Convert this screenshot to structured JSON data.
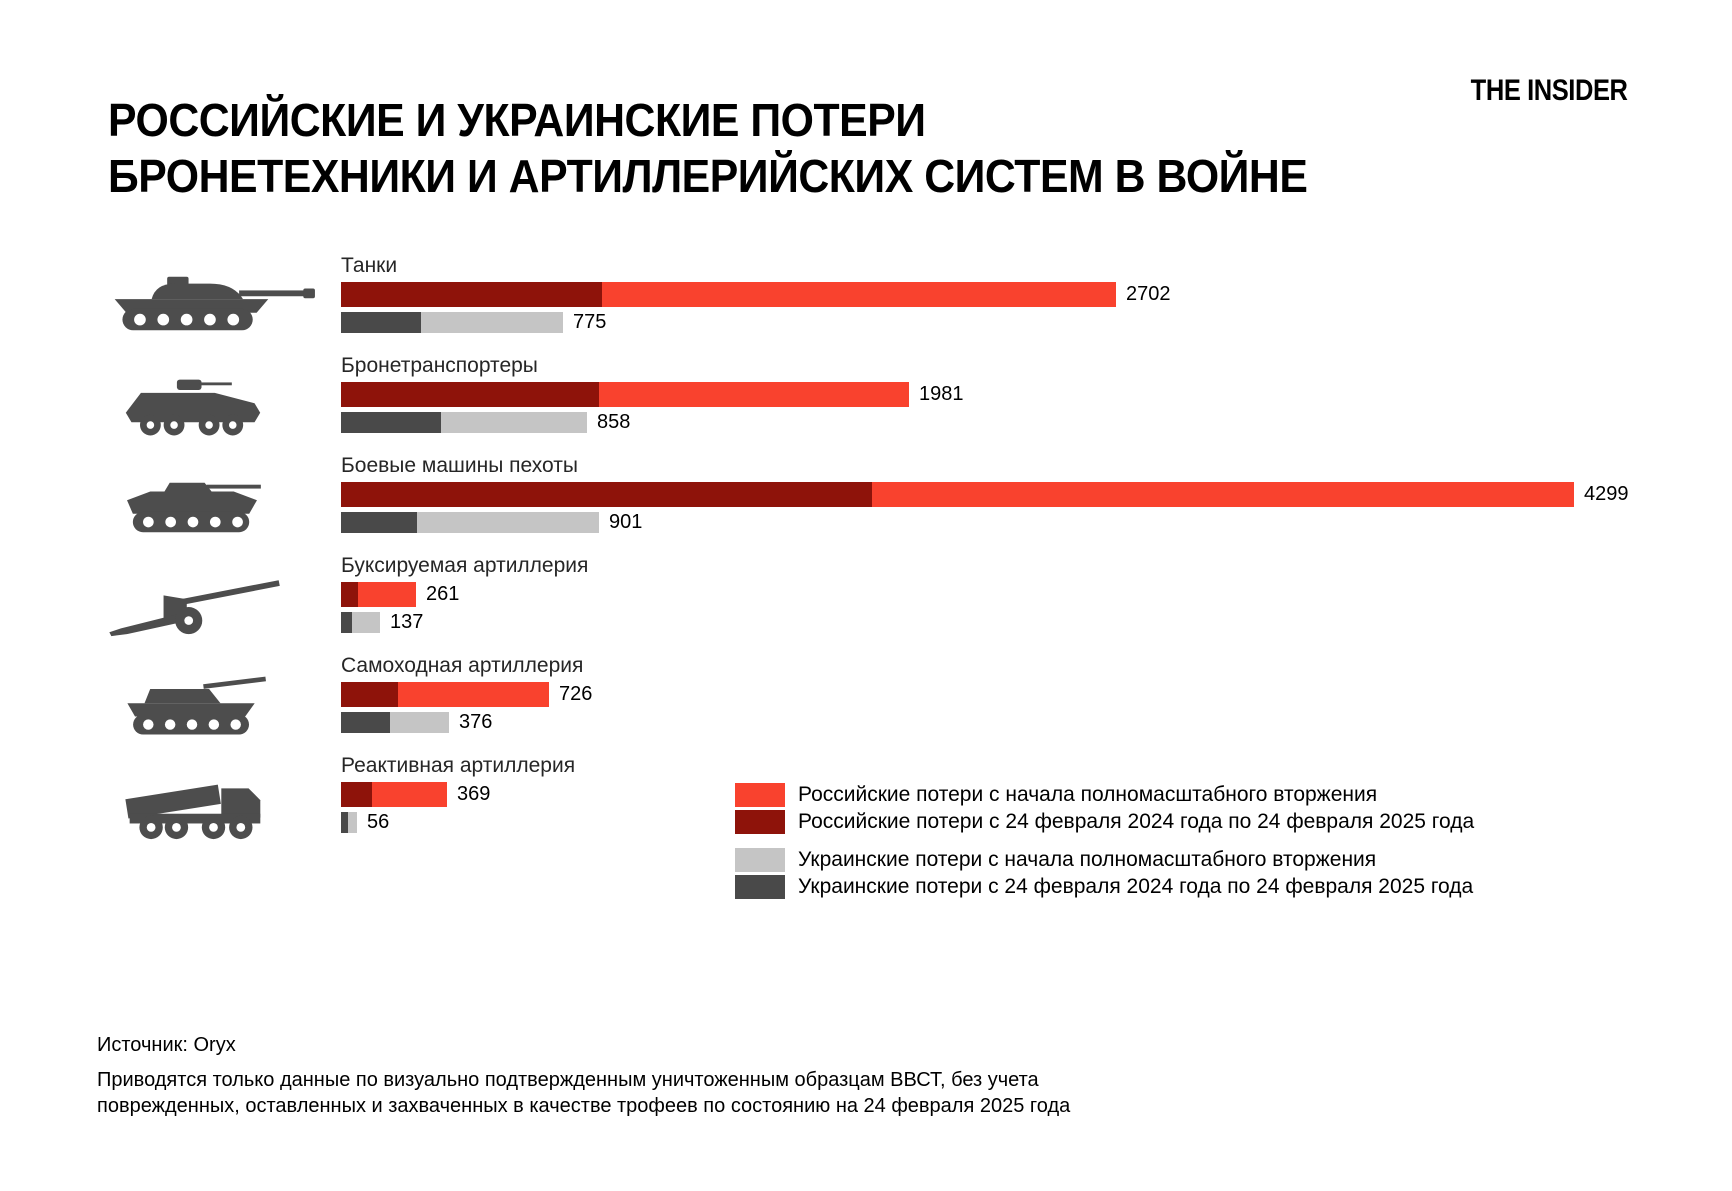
{
  "logo": {
    "text": "THE INSIDER"
  },
  "title": {
    "line1": "РОССИЙСКИЕ И УКРАИНСКИЕ ПОТЕРИ",
    "line2": "БРОНЕТЕХНИКИ И АРТИЛЛЕРИЙСКИХ СИСТЕМ В ВОЙНЕ"
  },
  "colors": {
    "russian_total": "#f9422e",
    "russian_last_year": "#8e130a",
    "ukrainian_total": "#c5c5c5",
    "ukrainian_last_year": "#494949",
    "silhouette": "#4d4d4d",
    "background": "#ffffff",
    "text": "#000000"
  },
  "chart_data": {
    "type": "bar",
    "orientation": "horizontal",
    "title": "РОССИЙСКИЕ И УКРАИНСКИЕ ПОТЕРИ БРОНЕТЕХНИКИ И АРТИЛЛЕРИЙСКИХ СИСТЕМ В ВОЙНЕ",
    "categories": [
      "Танки",
      "Бронетранспортеры",
      "Боевые машины пехоты",
      "Буксируемая артиллерия",
      "Самоходная артиллерия",
      "Реактивная артиллерия"
    ],
    "icons": [
      "tank-icon",
      "apc-icon",
      "ifv-icon",
      "towed-artillery-icon",
      "self-propelled-artillery-icon",
      "mlrs-icon"
    ],
    "xlim": [
      0,
      4299
    ],
    "grid": false,
    "legend_position": "bottom-right",
    "series": [
      {
        "id": "ru_total",
        "name": "Российские потери с начала полномасштабного вторжения",
        "color": "#f9422e",
        "values": [
          2702,
          1981,
          4299,
          261,
          726,
          369
        ],
        "value_labels_shown": true,
        "estimated": false
      },
      {
        "id": "ru_last_year",
        "name": "Российские потери с 24 февраля 2024 года по 24 февраля 2025 года",
        "color": "#8e130a",
        "values": [
          910,
          900,
          1850,
          60,
          200,
          108
        ],
        "value_labels_shown": false,
        "estimated": true
      },
      {
        "id": "ua_total",
        "name": "Украинские потери с начала полномасштабного вторжения",
        "color": "#c5c5c5",
        "values": [
          775,
          858,
          901,
          137,
          376,
          56
        ],
        "value_labels_shown": true,
        "estimated": false
      },
      {
        "id": "ua_last_year",
        "name": "Украинские потери с 24 февраля 2024 года по 24 февраля 2025 года",
        "color": "#494949",
        "values": [
          280,
          350,
          265,
          38,
          170,
          24
        ],
        "value_labels_shown": false,
        "estimated": true
      }
    ]
  },
  "footer": {
    "source": "Источник: Oryx",
    "note_line1": "Приводятся только данные по визуально подтвержденным уничтоженным образцам ВВСТ, без учета",
    "note_line2": "поврежденных, оставленных и захваченных в качестве трофеев по состоянию на 24 февраля 2025 года"
  }
}
